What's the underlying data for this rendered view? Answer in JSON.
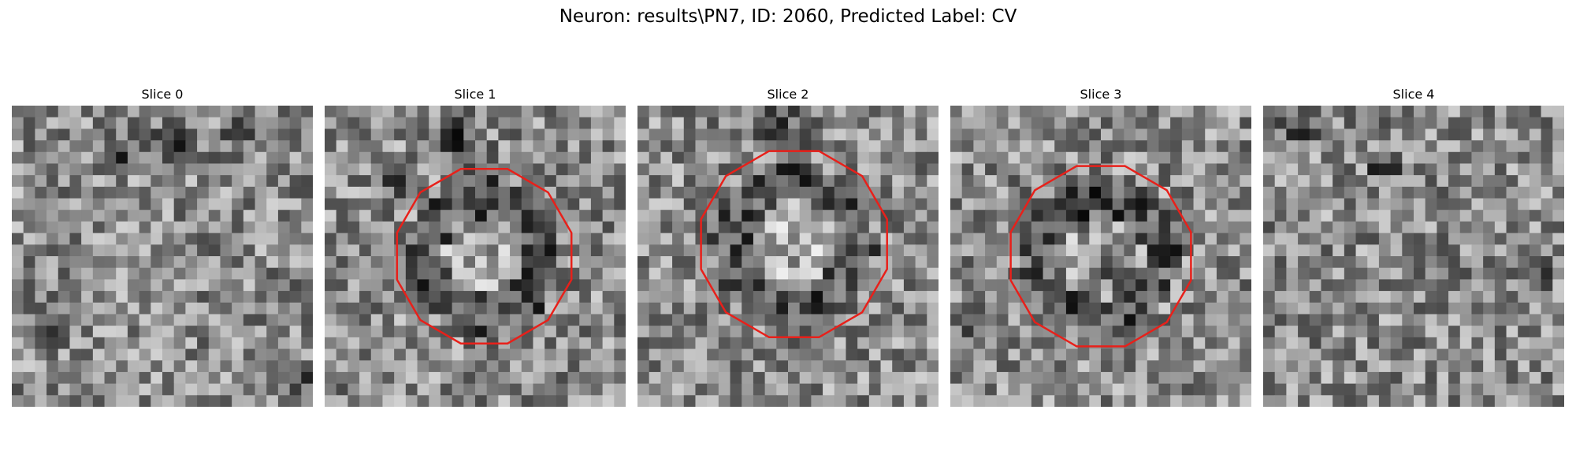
{
  "figure": {
    "title": "Neuron: results\\PN7, ID: 2060, Predicted Label: CV"
  },
  "panels": [
    {
      "title": "Slice 0",
      "has_outline": false,
      "seed": 11
    },
    {
      "title": "Slice 1",
      "has_outline": true,
      "seed": 23
    },
    {
      "title": "Slice 2",
      "has_outline": true,
      "seed": 37
    },
    {
      "title": "Slice 3",
      "has_outline": true,
      "seed": 51
    },
    {
      "title": "Slice 4",
      "has_outline": false,
      "seed": 67
    }
  ],
  "colors": {
    "outline": "#e8201a",
    "background": "#ffffff"
  },
  "image": {
    "grid_size": 26,
    "colormap": "gray"
  }
}
